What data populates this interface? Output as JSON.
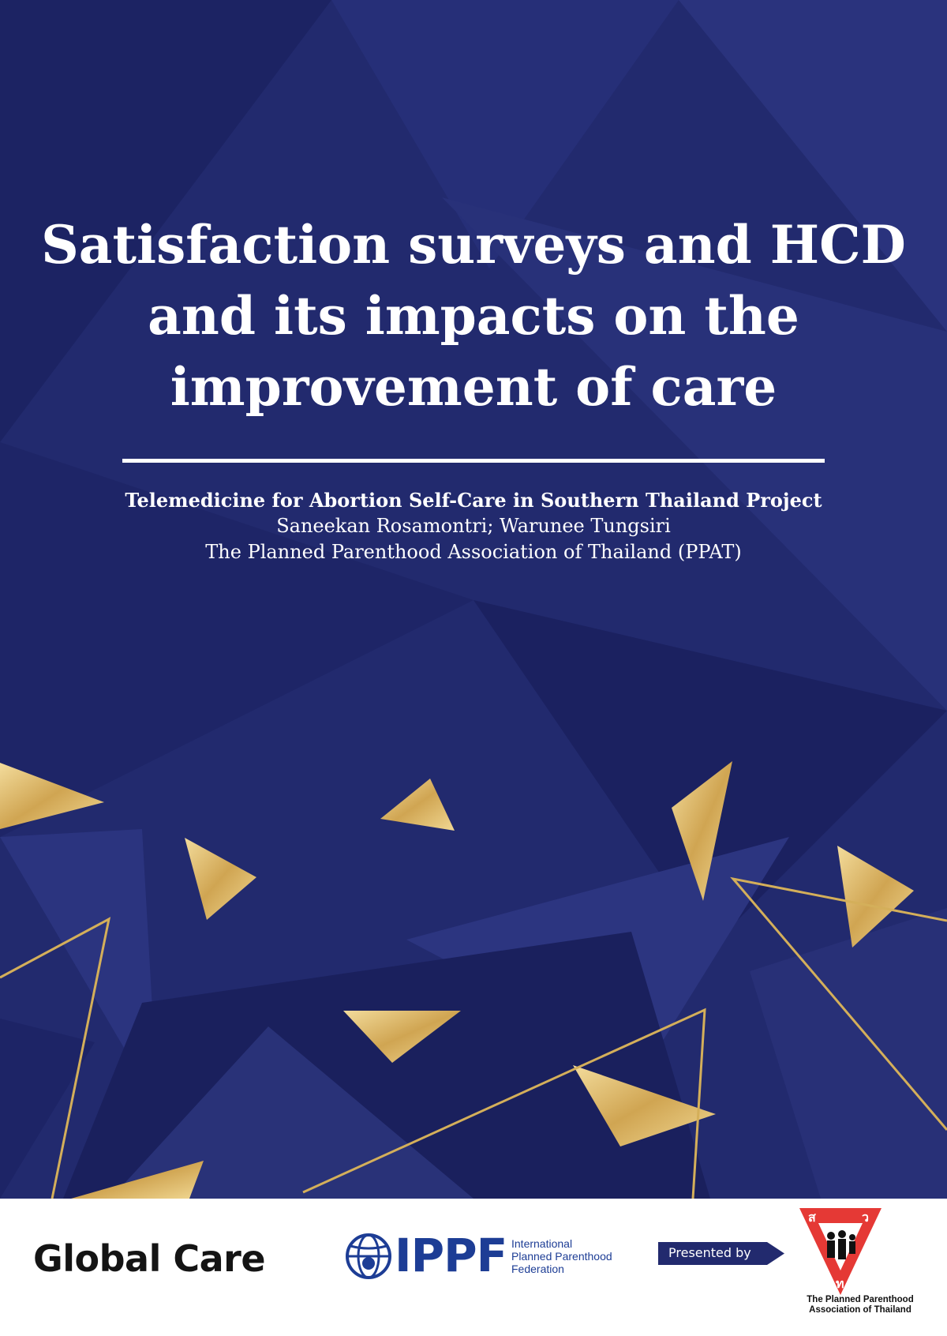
{
  "cover": {
    "title_lines": [
      "Satisfaction surveys and HCD",
      "and its impacts on the",
      "improvement of care"
    ],
    "project": "Telemedicine for Abortion Self-Care in Southern Thailand Project",
    "authors": "Saneekan Rosamontri; Warunee Tungsiri",
    "organization": "The Planned Parenthood Association of Thailand (PPAT)"
  },
  "colors": {
    "background": "#222a6e",
    "gold": "#d4af5a",
    "ippf_blue": "#1d3d95",
    "ppat_red": "#e53935"
  },
  "footer": {
    "global_care": "Global Care",
    "ippf_abbr": "IPPF",
    "ippf_full_lines": [
      "International",
      "Planned Parenthood",
      "Federation"
    ],
    "presented_by": "Presented by",
    "ppat_name_lines": [
      "The Planned Parenthood",
      "Association of Thailand"
    ],
    "ppat_emblem_letters": [
      "ส",
      "ว",
      "ท"
    ],
    "icons": [
      "ippf-globe-icon",
      "ppat-emblem-icon",
      "presented-arrow"
    ]
  }
}
